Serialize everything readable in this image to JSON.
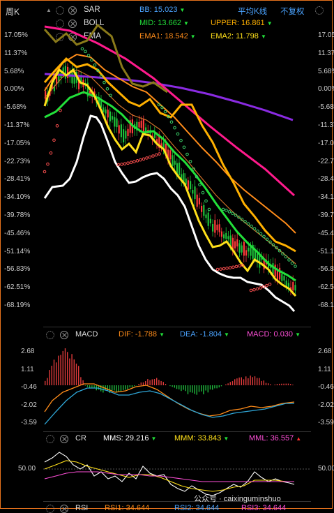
{
  "header": {
    "period": "周K",
    "indicators": [
      {
        "name": "SAR",
        "values": [
          {
            "label": "BB:",
            "value": "15.023",
            "color": "#4aa3ff"
          }
        ]
      },
      {
        "name": "BOLL",
        "values": [
          {
            "label": "MID:",
            "value": "13.662",
            "color": "#22e03a"
          },
          {
            "label": "UPPER:",
            "value": "16.861",
            "color": "#ffb000"
          }
        ]
      },
      {
        "name": "EMA",
        "values": [
          {
            "label": "EMA1:",
            "value": "18.542",
            "color": "#ff8c1a"
          },
          {
            "label": "EMA2:",
            "value": "11.798",
            "color": "#ffe01a"
          }
        ]
      }
    ],
    "avg_k_label": "平均K线",
    "adjust_label": "不复权"
  },
  "price_axis": [
    "17.05%",
    "11.37%",
    "5.68%",
    "0.00%",
    "-5.68%",
    "-11.37%",
    "-17.05%",
    "-22.73%",
    "-28.41%",
    "-34.10%",
    "-39.78%",
    "-45.46%",
    "-51.14%",
    "-56.83%",
    "-62.51%",
    "-68.19%"
  ],
  "macd": {
    "name": "MACD",
    "values": [
      {
        "label": "DIF:",
        "value": "-1.788",
        "color": "#ff8c1a"
      },
      {
        "label": "DEA:",
        "value": "-1.804",
        "color": "#4aa3ff"
      },
      {
        "label": "MACD:",
        "value": "0.030",
        "color": "#ff4fd8"
      }
    ],
    "axis": [
      "2.68",
      "1.11",
      "-0.46",
      "-2.02",
      "-3.59"
    ]
  },
  "cr": {
    "name": "CR",
    "values": [
      {
        "label": "MMS:",
        "value": "29.216",
        "color": "#ffffff"
      },
      {
        "label": "MMM:",
        "value": "33.843",
        "color": "#ffe01a"
      },
      {
        "label": "MML:",
        "value": "36.557",
        "color": "#ff4fd8"
      }
    ],
    "axis": [
      "50.00"
    ]
  },
  "rsi": {
    "name": "RSI",
    "values": [
      {
        "label": "RSI1:",
        "value": "34.644",
        "color": "#ff8c1a"
      },
      {
        "label": "RSI2:",
        "value": "34.644",
        "color": "#4aa3ff"
      },
      {
        "label": "RSI3:",
        "value": "34.644",
        "color": "#ff4fd8"
      }
    ]
  },
  "watermark": "公众号 · caixinguminshuo"
}
